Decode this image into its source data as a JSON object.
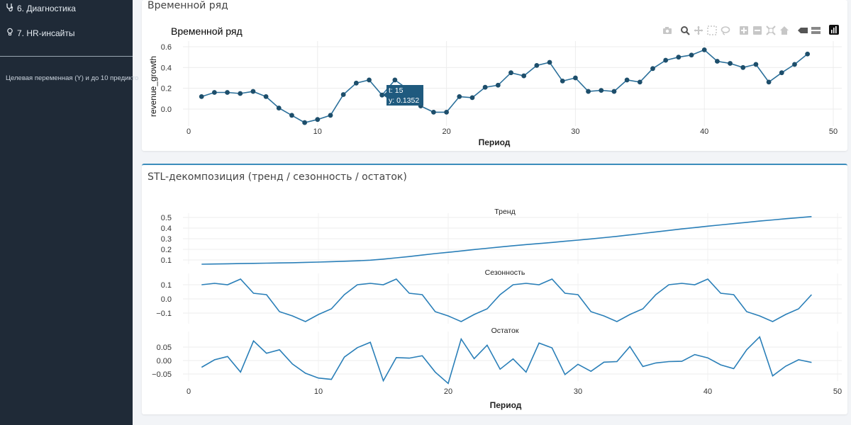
{
  "sidebar": {
    "items": [
      {
        "label": "6. Диагностика",
        "icon": "stethoscope-icon"
      },
      {
        "label": "7. HR-инсайты",
        "icon": "lightbulb-icon"
      }
    ],
    "note": "Целевая переменная (Y) и до 10 предикто"
  },
  "timeseries_box": {
    "header": "Временной ряд",
    "plot_title": "Временной ряд",
    "xlabel": "Период",
    "ylabel": "revenue_growth",
    "tooltip": {
      "t_label": "t: 15",
      "y_label": "y:  0.1352"
    },
    "modebar_icons": [
      "camera-icon",
      "zoom-icon",
      "pan-icon",
      "box-select-icon",
      "lasso-icon",
      "zoom-in-icon",
      "zoom-out-icon",
      "autoscale-icon",
      "reset-axes-icon",
      "spike-lines-icon",
      "compare-hover-icon",
      "plotly-logo-icon"
    ]
  },
  "stl_box": {
    "header": "STL-декомпозиция (тренд / сезонность / остаток)",
    "panel_titles": [
      "Тренд",
      "Сезонность",
      "Остаток"
    ],
    "xlabel": "Период"
  },
  "chart_data": [
    {
      "type": "line",
      "title": "Временной ряд",
      "xlabel": "Период",
      "ylabel": "revenue_growth",
      "x": [
        1,
        2,
        3,
        4,
        5,
        6,
        7,
        8,
        9,
        10,
        11,
        12,
        13,
        14,
        15,
        16,
        17,
        18,
        19,
        20,
        21,
        22,
        23,
        24,
        25,
        26,
        27,
        28,
        29,
        30,
        31,
        32,
        33,
        34,
        35,
        36,
        37,
        38,
        39,
        40,
        41,
        42,
        43,
        44,
        45,
        46,
        47,
        48
      ],
      "y": [
        0.12,
        0.16,
        0.16,
        0.15,
        0.17,
        0.12,
        0.01,
        -0.06,
        -0.13,
        -0.1,
        -0.06,
        0.14,
        0.25,
        0.28,
        0.1352,
        0.28,
        0.19,
        0.03,
        -0.03,
        -0.03,
        0.12,
        0.11,
        0.21,
        0.23,
        0.35,
        0.32,
        0.42,
        0.45,
        0.27,
        0.3,
        0.17,
        0.18,
        0.17,
        0.28,
        0.26,
        0.39,
        0.47,
        0.5,
        0.52,
        0.57,
        0.46,
        0.44,
        0.4,
        0.43,
        0.26,
        0.35,
        0.43,
        0.53
      ],
      "xlim": [
        -1,
        50
      ],
      "ylim": [
        -0.18,
        0.62
      ],
      "xticks": [
        0,
        10,
        20,
        30,
        40,
        50
      ],
      "yticks": [
        0.0,
        0.2,
        0.4,
        0.6
      ],
      "grid": true,
      "color": "#1f77b4"
    },
    {
      "type": "line",
      "title": "Тренд",
      "x": [
        1,
        2,
        3,
        4,
        5,
        6,
        7,
        8,
        9,
        10,
        11,
        12,
        13,
        14,
        15,
        16,
        17,
        18,
        19,
        20,
        21,
        22,
        23,
        24,
        25,
        26,
        27,
        28,
        29,
        30,
        31,
        32,
        33,
        34,
        35,
        36,
        37,
        38,
        39,
        40,
        41,
        42,
        43,
        44,
        45,
        46,
        47,
        48
      ],
      "y": [
        0.06,
        0.062,
        0.064,
        0.066,
        0.068,
        0.07,
        0.072,
        0.074,
        0.077,
        0.08,
        0.084,
        0.088,
        0.092,
        0.098,
        0.108,
        0.12,
        0.132,
        0.146,
        0.16,
        0.172,
        0.185,
        0.198,
        0.21,
        0.222,
        0.234,
        0.245,
        0.255,
        0.265,
        0.276,
        0.287,
        0.298,
        0.31,
        0.322,
        0.336,
        0.35,
        0.364,
        0.378,
        0.392,
        0.405,
        0.418,
        0.43,
        0.442,
        0.454,
        0.466,
        0.477,
        0.488,
        0.498,
        0.508
      ],
      "yticks": [
        0.1,
        0.2,
        0.3,
        0.4,
        0.5
      ],
      "ylim": [
        0.03,
        0.53
      ],
      "color": "#1f77b4"
    },
    {
      "type": "line",
      "title": "Сезонность",
      "x": [
        1,
        2,
        3,
        4,
        5,
        6,
        7,
        8,
        9,
        10,
        11,
        12,
        13,
        14,
        15,
        16,
        17,
        18,
        19,
        20,
        21,
        22,
        23,
        24,
        25,
        26,
        27,
        28,
        29,
        30,
        31,
        32,
        33,
        34,
        35,
        36,
        37,
        38,
        39,
        40,
        41,
        42,
        43,
        44,
        45,
        46,
        47,
        48
      ],
      "y": [
        0.1,
        0.11,
        0.1,
        0.14,
        0.04,
        0.03,
        -0.09,
        -0.12,
        -0.16,
        -0.11,
        -0.07,
        0.03,
        0.1,
        0.11,
        0.1,
        0.14,
        0.04,
        0.03,
        -0.09,
        -0.12,
        -0.16,
        -0.11,
        -0.07,
        0.03,
        0.1,
        0.11,
        0.1,
        0.14,
        0.04,
        0.03,
        -0.09,
        -0.12,
        -0.16,
        -0.11,
        -0.07,
        0.03,
        0.1,
        0.11,
        0.1,
        0.14,
        0.04,
        0.03,
        -0.09,
        -0.12,
        -0.16,
        -0.11,
        -0.07,
        0.03
      ],
      "yticks": [
        -0.1,
        0.0,
        0.1
      ],
      "ylim": [
        -0.17,
        0.15
      ],
      "color": "#1f77b4"
    },
    {
      "type": "line",
      "title": "Остаток",
      "xlabel": "Период",
      "x": [
        1,
        2,
        3,
        4,
        5,
        6,
        7,
        8,
        9,
        10,
        11,
        12,
        13,
        14,
        15,
        16,
        17,
        18,
        19,
        20,
        21,
        22,
        23,
        24,
        25,
        26,
        27,
        28,
        29,
        30,
        31,
        32,
        33,
        34,
        35,
        36,
        37,
        38,
        39,
        40,
        41,
        42,
        43,
        44,
        45,
        46,
        47,
        48
      ],
      "y": [
        -0.025,
        0.003,
        0.015,
        -0.043,
        0.073,
        0.027,
        0.04,
        -0.013,
        -0.047,
        -0.065,
        -0.07,
        0.013,
        0.048,
        0.068,
        -0.075,
        0.011,
        0.009,
        0.018,
        -0.043,
        -0.085,
        0.08,
        0.007,
        0.057,
        -0.032,
        0.006,
        -0.043,
        0.065,
        0.047,
        -0.052,
        -0.014,
        -0.04,
        -0.006,
        -0.004,
        0.052,
        -0.022,
        -0.009,
        -0.004,
        -0.003,
        0.022,
        0.01,
        -0.016,
        -0.03,
        0.04,
        0.088,
        -0.057,
        -0.021,
        0.003,
        -0.007
      ],
      "yticks": [
        -0.05,
        0.0,
        0.05
      ],
      "ylim": [
        -0.092,
        0.095
      ],
      "xticks": [
        0,
        10,
        20,
        30,
        40,
        50
      ],
      "xlim": [
        -1,
        50
      ],
      "color": "#1f77b4"
    }
  ]
}
